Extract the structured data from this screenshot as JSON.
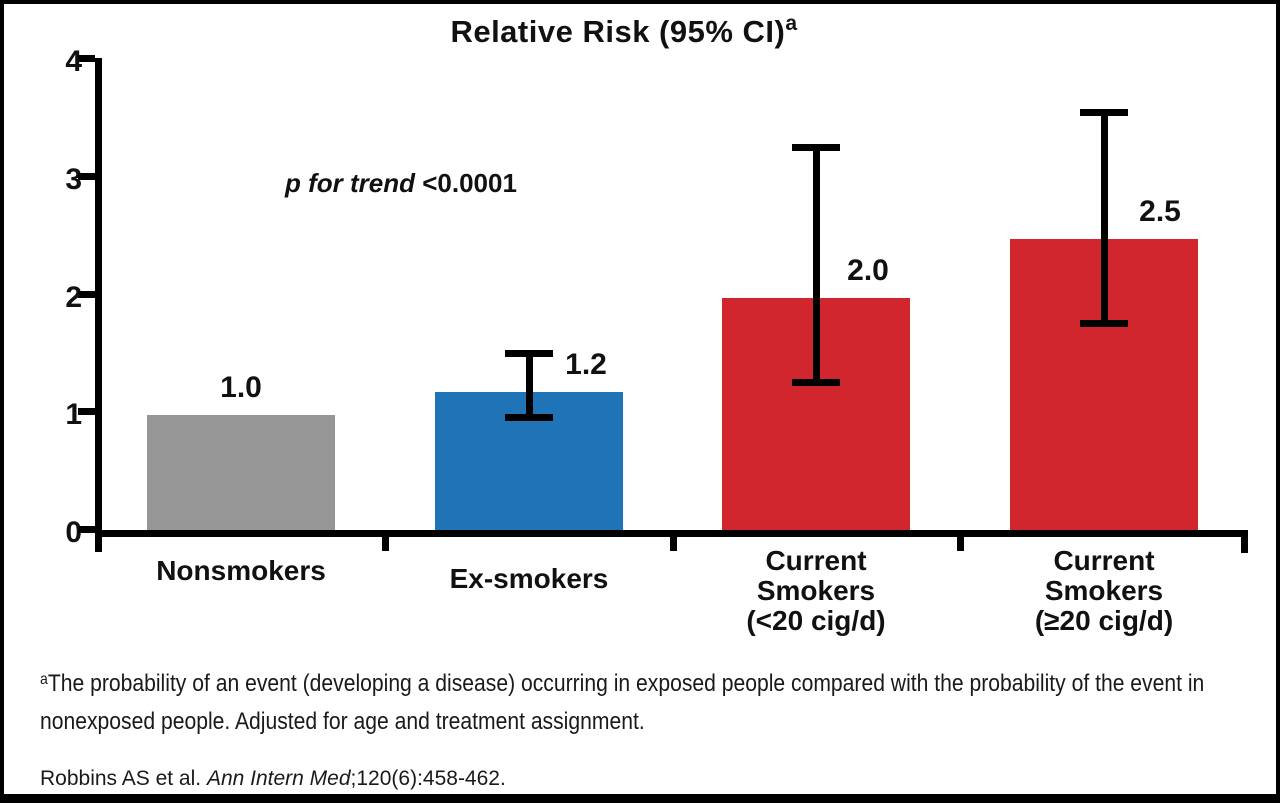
{
  "chart_data": {
    "type": "bar",
    "title": "Relative Risk (95% CI)",
    "title_superscript": "a",
    "annotation": {
      "italic_part": "p for trend ",
      "value_part": "<0.0001"
    },
    "categories": [
      "Nonsmokers",
      "Ex-smokers",
      "Current Smokers (<20 cig/d)",
      "Current Smokers (≥20 cig/d)"
    ],
    "category_label_lines": [
      [
        "Nonsmokers"
      ],
      [
        "Ex-smokers"
      ],
      [
        "Current",
        "Smokers",
        "(<20 cig/d)"
      ],
      [
        "Current",
        "Smokers",
        "(≥20 cig/d)"
      ]
    ],
    "values": [
      1.0,
      1.2,
      2.0,
      2.5
    ],
    "value_labels": [
      "1.0",
      "1.2",
      "2.0",
      "2.5"
    ],
    "ci_low": [
      null,
      0.95,
      1.25,
      1.75
    ],
    "ci_high": [
      null,
      1.55,
      3.3,
      3.6
    ],
    "bar_colors": [
      "#969696",
      "#1F74B8",
      "#D2262E",
      "#D2262E"
    ],
    "y_axis": {
      "min": 0,
      "max": 4,
      "tick_labels_top_to_bottom": [
        "4",
        "3",
        "2",
        "1",
        "0"
      ]
    },
    "grid": false,
    "legend": null
  },
  "footnote": {
    "superscript": "a",
    "text": "The probability of an event (developing a disease) occurring in exposed people compared with the probability of the event in nonexposed people. Adjusted for age and treatment assignment."
  },
  "citation": {
    "pre": "Robbins AS et al. ",
    "italic": "Ann Intern Med",
    "post": ";120(6):458-462."
  }
}
